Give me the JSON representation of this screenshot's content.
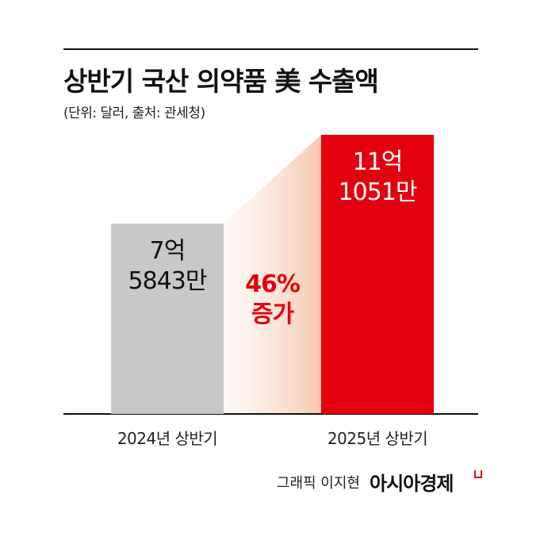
{
  "chart_data": {
    "type": "bar",
    "title": "상반기 국산 의약품 美 수출액",
    "subtitle": "(단위: 달러, 출처: 관세청)",
    "categories": [
      "2024년 상반기",
      "2025년 상반기"
    ],
    "values": [
      758430000,
      1110510000
    ],
    "value_labels": [
      "7억\n5843만",
      "11억\n1051만"
    ],
    "colors": [
      "#c8c8c9",
      "#e3000f"
    ],
    "value_label_colors": [
      "#111111",
      "#ffffff"
    ],
    "annotation": "46%\n증가",
    "annotation_color": "#e3000f",
    "source": "그래픽 이지현",
    "brand": "아시아경제"
  }
}
